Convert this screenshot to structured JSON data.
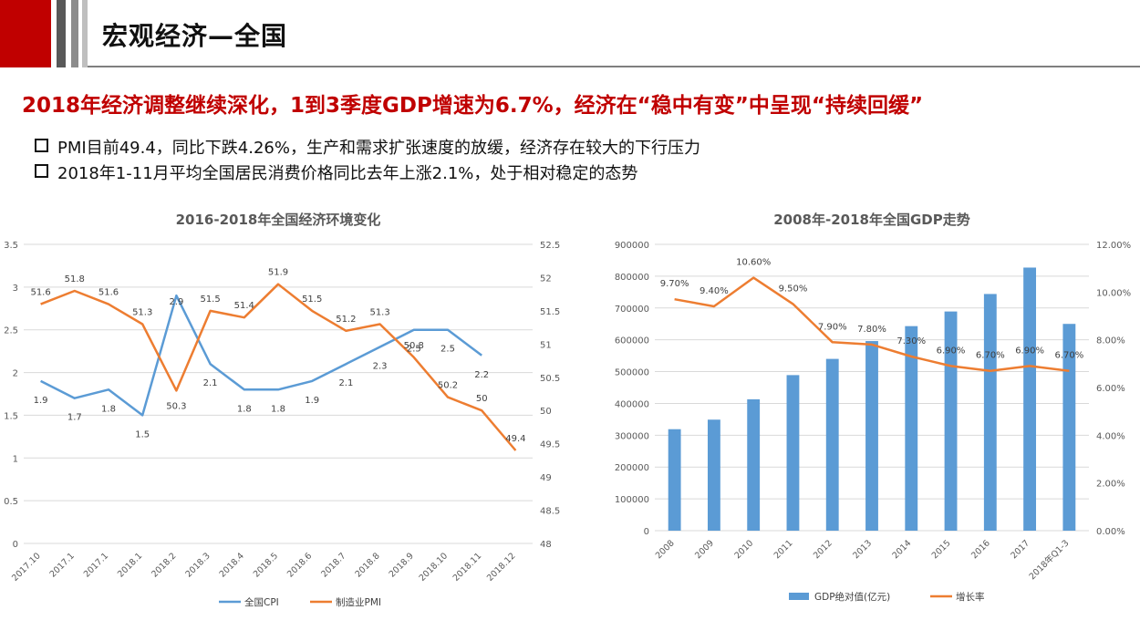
{
  "header": {
    "title": "宏观经济—全国"
  },
  "headline": "2018年经济调整继续深化，1到3季度GDP增速为6.7%，经济在“稳中有变”中呈现“持续回缓”",
  "bullets": [
    "PMI目前49.4，同比下跌4.26%，生产和需求扩张速度的放缓，经济存在较大的下行压力",
    "2018年1-11月平均全国居民消费价格同比去年上涨2.1%，处于相对稳定的态势"
  ],
  "chart_data": [
    {
      "type": "line",
      "title": "2016-2018年全国经济环境变化",
      "categories": [
        "2017.10",
        "2017.1",
        "2017.1",
        "2018.1",
        "2018.2",
        "2018.3",
        "2018.4",
        "2018.5",
        "2018.6",
        "2018.7",
        "2018.8",
        "2018.9",
        "2018.10",
        "2018.11",
        "2018.12"
      ],
      "y_left": {
        "min": 0,
        "max": 3.5,
        "ticks": [
          "0",
          "0.5",
          "1",
          "1.5",
          "2",
          "2.5",
          "3",
          "3.5"
        ]
      },
      "y_right": {
        "min": 48,
        "max": 52.5,
        "ticks": [
          "48",
          "48.5",
          "49",
          "49.5",
          "50",
          "50.5",
          "51",
          "51.5",
          "52",
          "52.5"
        ]
      },
      "series": [
        {
          "name": "全国CPI",
          "axis": "left",
          "color": "#5b9bd5",
          "values": [
            1.9,
            1.7,
            1.8,
            1.5,
            2.9,
            2.1,
            1.8,
            1.8,
            1.9,
            2.1,
            2.3,
            2.5,
            2.5,
            2.2,
            null
          ],
          "labels": [
            "1.9",
            "1.7",
            "1.8",
            "1.5",
            "2.9",
            "2.1",
            "1.8",
            "1.8",
            "1.9",
            "2.1",
            "2.3",
            "2.5",
            "2.5",
            "2.2",
            ""
          ]
        },
        {
          "name": "制造业PMI",
          "axis": "right",
          "color": "#ed7d31",
          "values": [
            51.6,
            51.8,
            51.6,
            51.3,
            50.3,
            51.5,
            51.4,
            51.9,
            51.5,
            51.2,
            51.3,
            50.8,
            50.2,
            50,
            49.4
          ],
          "labels": [
            "51.6",
            "51.8",
            "51.6",
            "51.3",
            "50.3",
            "51.5",
            "51.4",
            "51.9",
            "51.5",
            "51.2",
            "51.3",
            "50.8",
            "50.2",
            "50",
            "49.4"
          ]
        }
      ],
      "legend": "bottom"
    },
    {
      "type": "bar",
      "title": "2008年-2018年全国GDP走势",
      "categories": [
        "2008",
        "2009",
        "2010",
        "2011",
        "2012",
        "2013",
        "2014",
        "2015",
        "2016",
        "2017",
        "2018年Q1-3"
      ],
      "y_left": {
        "min": 0,
        "max": 900000,
        "ticks": [
          "0",
          "100000",
          "200000",
          "300000",
          "400000",
          "500000",
          "600000",
          "700000",
          "800000",
          "900000"
        ]
      },
      "y_right": {
        "min": 0,
        "max": 12,
        "ticks": [
          "0.00%",
          "2.00%",
          "4.00%",
          "6.00%",
          "8.00%",
          "10.00%",
          "12.00%"
        ]
      },
      "series": [
        {
          "name": "GDP绝对值(亿元)",
          "kind": "bar",
          "axis": "left",
          "color": "#5b9bd5",
          "values": [
            319000,
            349000,
            413000,
            489000,
            540000,
            596000,
            643000,
            689000,
            744000,
            827000,
            650000
          ]
        },
        {
          "name": "增长率",
          "kind": "line",
          "axis": "right",
          "color": "#ed7d31",
          "values": [
            9.7,
            9.4,
            10.6,
            9.5,
            7.9,
            7.8,
            7.3,
            6.9,
            6.7,
            6.9,
            6.7
          ],
          "labels": [
            "9.70%",
            "9.40%",
            "10.60%",
            "9.50%",
            "7.90%",
            "7.80%",
            "7.30%",
            "6.90%",
            "6.70%",
            "6.90%",
            "6.70%"
          ]
        }
      ],
      "legend": "bottom"
    }
  ]
}
